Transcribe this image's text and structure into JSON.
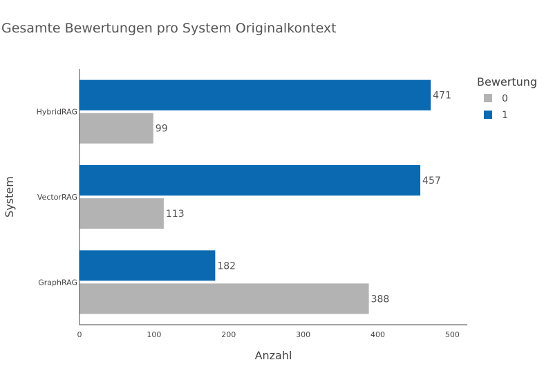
{
  "chart_data": {
    "type": "bar",
    "orientation": "horizontal",
    "title": "Gesamte Bewertungen pro System Originalkontext",
    "xlabel": "Anzahl",
    "ylabel": "System",
    "categories": [
      "GraphRAG",
      "VectorRAG",
      "HybridRAG"
    ],
    "series": [
      {
        "name": "0",
        "values": [
          388,
          113,
          99
        ],
        "color": "#b3b3b3"
      },
      {
        "name": "1",
        "values": [
          182,
          457,
          471
        ],
        "color": "#0a69b1"
      }
    ],
    "xlim": [
      0,
      520
    ],
    "xticks": [
      0,
      100,
      200,
      300,
      400,
      500
    ],
    "legend": {
      "title": "Bewertung",
      "placement": "top-right"
    },
    "grid": false,
    "data_labels": true
  }
}
